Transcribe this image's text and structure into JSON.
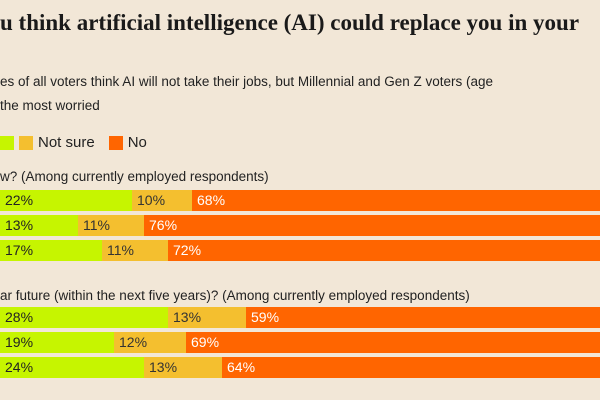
{
  "title": "u think artificial intelligence (AI) could replace you in your",
  "subtitle_lines": [
    "es of all voters think AI will not take their jobs, but Millennial and Gen Z voters (age",
    "the most worried"
  ],
  "legend": [
    {
      "label": "Not sure",
      "color": "#f4bf2f"
    },
    {
      "label": "No",
      "color": "#ff6500"
    }
  ],
  "colors": {
    "yes": "#c6f500",
    "not_sure": "#f4bf2f",
    "no": "#ff6500",
    "background": "#f2e7d7"
  },
  "chart_data": {
    "type": "bar",
    "orientation": "horizontal-stacked-100",
    "legend_position": "top-left",
    "groups": [
      {
        "question": "w? (Among currently employed respondents)",
        "rows": [
          {
            "yes": 22,
            "not_sure": 10,
            "no": 68
          },
          {
            "yes": 13,
            "not_sure": 11,
            "no": 76
          },
          {
            "yes": 17,
            "not_sure": 11,
            "no": 72
          }
        ]
      },
      {
        "question": "ar future (within the next five years)? (Among currently employed respondents)",
        "rows": [
          {
            "yes": 28,
            "not_sure": 13,
            "no": 59
          },
          {
            "yes": 19,
            "not_sure": 12,
            "no": 69
          },
          {
            "yes": 24,
            "not_sure": 13,
            "no": 64
          }
        ]
      }
    ]
  }
}
